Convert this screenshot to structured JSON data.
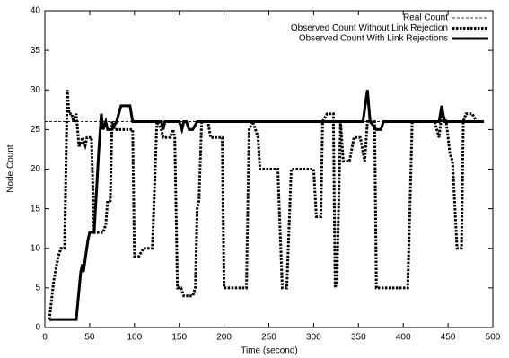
{
  "chart_data": {
    "type": "line",
    "x_label": "Time (second)",
    "y_label": "Node Count",
    "xlim": [
      0,
      500
    ],
    "xticks": [
      0,
      50,
      100,
      150,
      200,
      250,
      300,
      350,
      400,
      450,
      500
    ],
    "ylim": [
      0,
      40
    ],
    "yticks": [
      0,
      5,
      10,
      15,
      20,
      25,
      30,
      35,
      40
    ],
    "legend": "upper right",
    "series": [
      {
        "name": "Real Count",
        "color": "#000000",
        "style": "dashed",
        "x": [
          0,
          490
        ],
        "values": [
          26,
          26
        ]
      },
      {
        "name": "Observed Count Without Link Rejection",
        "color": "#000000",
        "style": "dotted",
        "x": [
          5,
          10,
          15,
          18,
          22,
          25,
          27,
          30,
          32,
          35,
          38,
          40,
          42,
          45,
          47,
          52,
          55,
          60,
          65,
          68,
          70,
          73,
          75,
          78,
          80,
          95,
          98,
          100,
          105,
          110,
          118,
          120,
          125,
          130,
          132,
          140,
          143,
          145,
          148,
          152,
          155,
          165,
          168,
          170,
          172,
          175,
          182,
          185,
          190,
          195,
          198,
          200,
          220,
          225,
          228,
          232,
          238,
          240,
          255,
          260,
          265,
          270,
          275,
          295,
          300,
          303,
          308,
          310,
          315,
          322,
          324,
          326,
          330,
          333,
          337,
          340,
          345,
          352,
          357,
          360,
          368,
          370,
          400,
          405,
          410,
          435,
          440,
          443,
          448,
          452,
          455,
          460,
          465,
          467,
          470,
          477,
          482,
          490
        ],
        "values": [
          1,
          6,
          9,
          10,
          10,
          30,
          27,
          27,
          26,
          27,
          23,
          23,
          24,
          23,
          24,
          24,
          12,
          12,
          12,
          13,
          16,
          16,
          26,
          25,
          25,
          25,
          25,
          9,
          9,
          10,
          10,
          10,
          26,
          25,
          24,
          24,
          25,
          24,
          5,
          5,
          4,
          4,
          5,
          15,
          16,
          26,
          26,
          24,
          24,
          24,
          24,
          5,
          5,
          5,
          25,
          26,
          24,
          20,
          20,
          20,
          5,
          5,
          20,
          20,
          20,
          14,
          14,
          26,
          27,
          27,
          5,
          6,
          26,
          21,
          21,
          21,
          24,
          24,
          21,
          26,
          26,
          5,
          5,
          5,
          26,
          26,
          24,
          27,
          26,
          22,
          21,
          10,
          10,
          26,
          27,
          27,
          26,
          26
        ]
      },
      {
        "name": "Observed Count With Link Rejections",
        "color": "#000000",
        "style": "solid",
        "x": [
          5,
          30,
          35,
          40,
          42,
          43,
          48,
          50,
          55,
          60,
          63,
          65,
          68,
          70,
          75,
          80,
          85,
          95,
          98,
          130,
          132,
          134,
          150,
          153,
          155,
          158,
          161,
          165,
          170,
          355,
          360,
          363,
          370,
          375,
          378,
          440,
          443,
          446,
          490
        ],
        "values": [
          1,
          1,
          1,
          7,
          8,
          7,
          11,
          12,
          12,
          22,
          27,
          25,
          26,
          25,
          25,
          26,
          28,
          28,
          26,
          26,
          25,
          26,
          26,
          25,
          26,
          26,
          25,
          25,
          26,
          26,
          30,
          26,
          25,
          25,
          26,
          26,
          28,
          26,
          26
        ]
      }
    ]
  }
}
